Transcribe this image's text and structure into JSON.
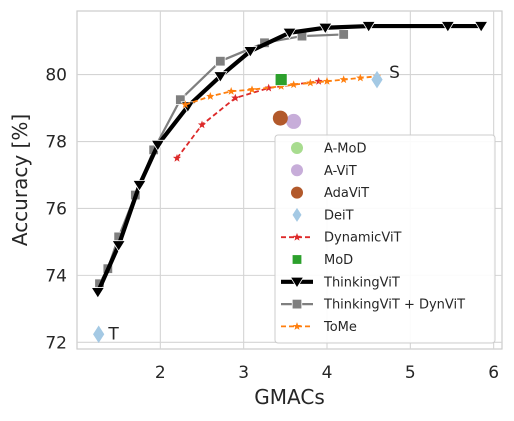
{
  "chart_data": {
    "type": "scatter",
    "xlabel": "GMACs",
    "ylabel": "Accuracy [%]",
    "xlim": [
      1.0,
      6.1
    ],
    "ylim": [
      71.8,
      81.9
    ],
    "xticks": [
      2,
      3,
      4,
      5,
      6
    ],
    "yticks": [
      72,
      74,
      76,
      78,
      80
    ],
    "grid": true,
    "legend_position": "lower-right",
    "annotations": [
      {
        "text": "T",
        "x": 1.28,
        "y": 72.24
      },
      {
        "text": "S",
        "x": 4.65,
        "y": 80.05
      }
    ],
    "series": [
      {
        "name": "A-MoD",
        "marker": "circle",
        "color": "#a8dc8f",
        "x": [],
        "y": []
      },
      {
        "name": "A-ViT",
        "marker": "circle",
        "color": "#c7add9",
        "x": [
          3.6
        ],
        "y": [
          78.6
        ]
      },
      {
        "name": "AdaViT",
        "marker": "circle",
        "color": "#b2592b",
        "x": [
          3.44
        ],
        "y": [
          78.7
        ]
      },
      {
        "name": "DeiT",
        "marker": "diamond",
        "color": "#a4c9e4",
        "x": [
          1.26,
          4.6
        ],
        "y": [
          72.24,
          79.85
        ]
      },
      {
        "name": "DynamicViT",
        "marker": "star",
        "line": "dashed",
        "color": "#dd2a2a",
        "x": [
          2.2,
          2.5,
          2.9,
          3.3,
          3.9
        ],
        "y": [
          77.5,
          78.5,
          79.3,
          79.6,
          79.8
        ]
      },
      {
        "name": "MoD",
        "marker": "square",
        "color": "#2ca02c",
        "x": [
          3.45
        ],
        "y": [
          79.85
        ]
      },
      {
        "name": "ThinkingViT",
        "marker": "triangle-down",
        "line": "solid-thick",
        "color": "#000000",
        "x": [
          1.25,
          1.5,
          1.75,
          1.97,
          2.33,
          2.72,
          3.08,
          3.55,
          3.98,
          4.5,
          5.45,
          5.85
        ],
        "y": [
          73.5,
          74.9,
          76.7,
          77.9,
          79.05,
          79.95,
          80.7,
          81.25,
          81.4,
          81.45,
          81.45,
          81.45
        ]
      },
      {
        "name": "ThinkingViT + DynViT",
        "marker": "square",
        "line": "solid",
        "color": "#7f7f7f",
        "x": [
          1.27,
          1.37,
          1.5,
          1.7,
          1.92,
          2.24,
          2.72,
          3.25,
          3.7,
          4.2
        ],
        "y": [
          73.75,
          74.2,
          75.15,
          76.4,
          77.75,
          79.25,
          80.4,
          80.95,
          81.15,
          81.2
        ]
      },
      {
        "name": "ToMe",
        "marker": "star",
        "line": "dashed",
        "color": "#ff7f0e",
        "x": [
          2.3,
          2.6,
          2.85,
          3.1,
          3.45,
          3.6,
          3.8,
          4.0,
          4.2,
          4.4,
          4.6
        ],
        "y": [
          79.1,
          79.35,
          79.5,
          79.55,
          79.65,
          79.7,
          79.75,
          79.8,
          79.85,
          79.9,
          79.95
        ]
      }
    ]
  }
}
